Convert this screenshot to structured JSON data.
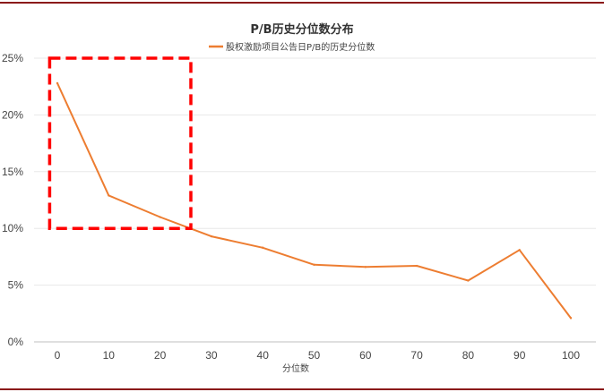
{
  "chart_data": {
    "type": "line",
    "title": "P/B历史分位数分布",
    "xlabel": "分位数",
    "ylabel": "",
    "x": [
      0,
      10,
      20,
      30,
      40,
      50,
      60,
      70,
      80,
      90,
      100
    ],
    "x_tick_labels": [
      "0",
      "10",
      "20",
      "30",
      "40",
      "50",
      "60",
      "70",
      "80",
      "90",
      "100"
    ],
    "y_tick_labels": [
      "0%",
      "5%",
      "10%",
      "15%",
      "20%",
      "25%"
    ],
    "ylim": [
      0,
      25
    ],
    "series": [
      {
        "name": "股权激励项目公告日P/B的历史分位数",
        "values": [
          22.8,
          12.9,
          11.0,
          9.3,
          8.3,
          6.8,
          6.6,
          6.7,
          5.4,
          8.1,
          2.1
        ],
        "color": "#ed7d31"
      }
    ],
    "highlight_box": {
      "x_range": [
        -1.5,
        26
      ],
      "y_range": [
        10,
        25
      ],
      "color": "#ff0000",
      "style": "dashed"
    },
    "grid": true,
    "legend_position": "top-center"
  }
}
